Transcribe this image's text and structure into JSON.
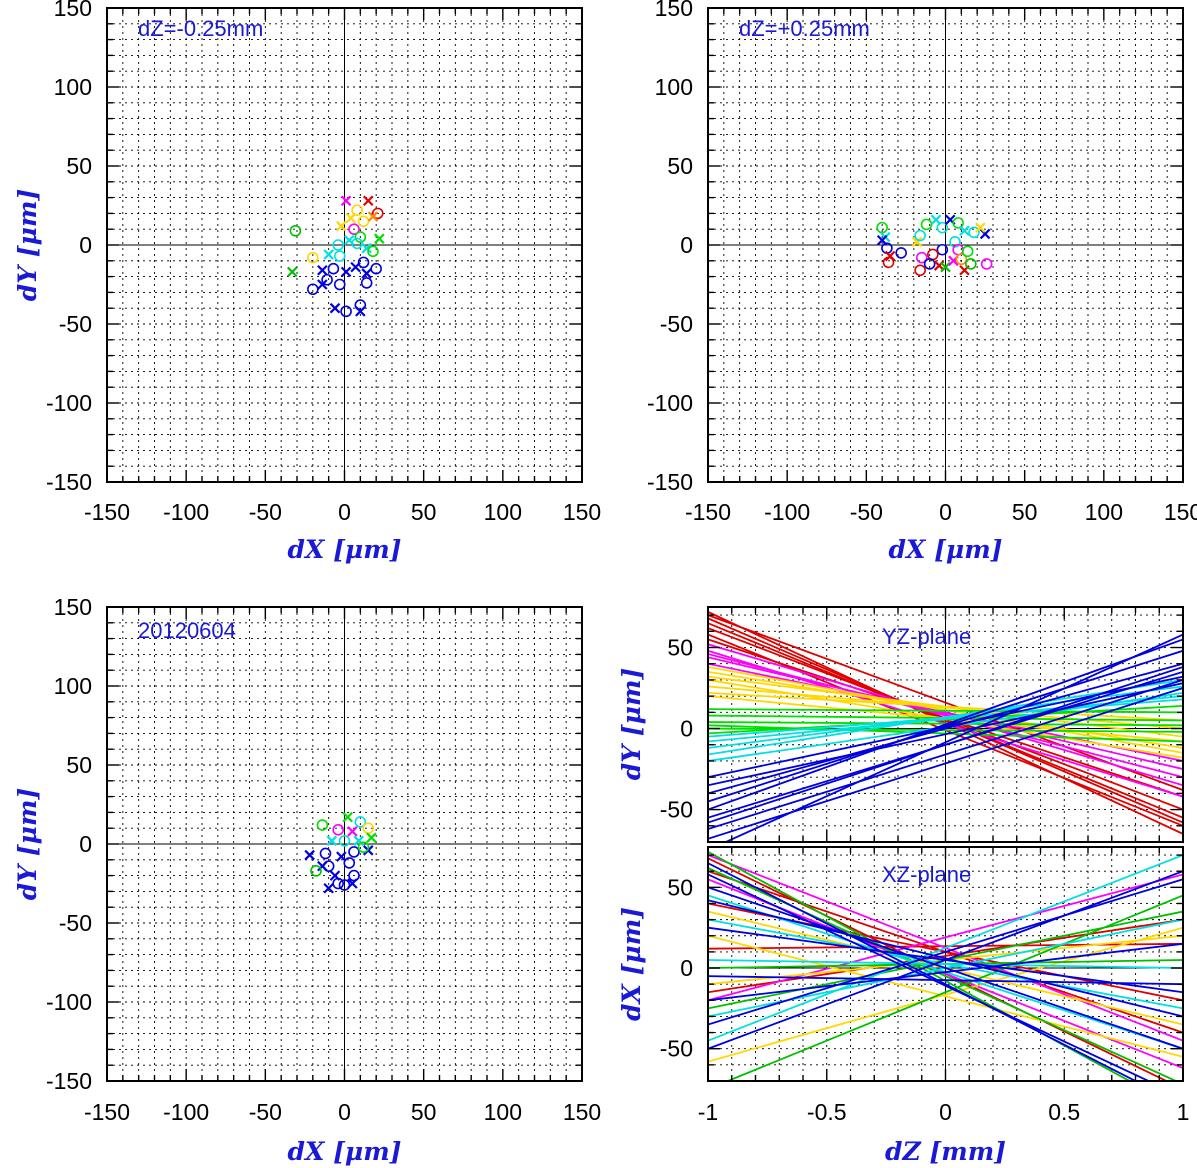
{
  "figure_date": "20120604",
  "chart_data": [
    {
      "type": "scatter",
      "annotation": "dZ=-0.25mm",
      "xlabel": "dX [μm]",
      "ylabel": "dY [μm]",
      "xlim": [
        -150,
        150
      ],
      "ylim": [
        -150,
        150
      ],
      "xticks": [
        "-150",
        "-100",
        "-50",
        "0",
        "50",
        "100",
        "150"
      ],
      "yticks": [
        "150",
        "100",
        "50",
        "0",
        "-50",
        "-100",
        "-150"
      ],
      "grid": true,
      "points": [
        {
          "x": 1,
          "y": 28,
          "c": "#ff00ff",
          "m": "x"
        },
        {
          "x": 15,
          "y": 28,
          "c": "#e00000",
          "m": "x"
        },
        {
          "x": 21,
          "y": 20,
          "c": "#e00000",
          "m": "o"
        },
        {
          "x": 8,
          "y": 22,
          "c": "#ffd800",
          "m": "o"
        },
        {
          "x": 4,
          "y": 17,
          "c": "#ffd800",
          "m": "x"
        },
        {
          "x": 12,
          "y": 15,
          "c": "#ffd800",
          "m": "o"
        },
        {
          "x": 18,
          "y": 18,
          "c": "#ff8c00",
          "m": "x"
        },
        {
          "x": 6,
          "y": 10,
          "c": "#ff00ff",
          "m": "o"
        },
        {
          "x": -2,
          "y": 12,
          "c": "#ffd800",
          "m": "x"
        },
        {
          "x": 10,
          "y": 5,
          "c": "#00e000",
          "m": "o"
        },
        {
          "x": -31,
          "y": 9,
          "c": "#00c000",
          "m": "o"
        },
        {
          "x": 22,
          "y": 4,
          "c": "#00e000",
          "m": "x"
        },
        {
          "x": 3,
          "y": 3,
          "c": "#00e0e0",
          "m": "x"
        },
        {
          "x": -4,
          "y": 0,
          "c": "#00e0e0",
          "m": "o"
        },
        {
          "x": 14,
          "y": -2,
          "c": "#00e0e0",
          "m": "x"
        },
        {
          "x": 8,
          "y": 1,
          "c": "#00e0e0",
          "m": "o"
        },
        {
          "x": -10,
          "y": -6,
          "c": "#00e0e0",
          "m": "x"
        },
        {
          "x": -3,
          "y": -7,
          "c": "#00e0e0",
          "m": "o"
        },
        {
          "x": -20,
          "y": -8,
          "c": "#ffd800",
          "m": "o"
        },
        {
          "x": 18,
          "y": -4,
          "c": "#00e000",
          "m": "o"
        },
        {
          "x": -33,
          "y": -17,
          "c": "#00c000",
          "m": "x"
        },
        {
          "x": -14,
          "y": -16,
          "c": "#0000e0",
          "m": "x"
        },
        {
          "x": -7,
          "y": -15,
          "c": "#0000e0",
          "m": "o"
        },
        {
          "x": 1,
          "y": -17,
          "c": "#0000e0",
          "m": "x"
        },
        {
          "x": 7,
          "y": -14,
          "c": "#0000e0",
          "m": "x"
        },
        {
          "x": 12,
          "y": -11,
          "c": "#0000e0",
          "m": "o"
        },
        {
          "x": 20,
          "y": -15,
          "c": "#0000e0",
          "m": "o"
        },
        {
          "x": 14,
          "y": -18,
          "c": "#0000e0",
          "m": "x"
        },
        {
          "x": -11,
          "y": -22,
          "c": "#0000e0",
          "m": "o"
        },
        {
          "x": -14,
          "y": -25,
          "c": "#0000e0",
          "m": "x"
        },
        {
          "x": -20,
          "y": -28,
          "c": "#0000e0",
          "m": "o"
        },
        {
          "x": 14,
          "y": -24,
          "c": "#0000e0",
          "m": "o"
        },
        {
          "x": -3,
          "y": -25,
          "c": "#0000e0",
          "m": "o"
        },
        {
          "x": 10,
          "y": -38,
          "c": "#0000e0",
          "m": "o"
        },
        {
          "x": 10,
          "y": -42,
          "c": "#0000e0",
          "m": "x"
        },
        {
          "x": -6,
          "y": -40,
          "c": "#0000e0",
          "m": "x"
        },
        {
          "x": 1,
          "y": -42,
          "c": "#0000e0",
          "m": "o"
        }
      ]
    },
    {
      "type": "scatter",
      "annotation": "dZ=+0.25mm",
      "xlabel": "dX [μm]",
      "ylabel": "dY [μm]",
      "xlim": [
        -150,
        150
      ],
      "ylim": [
        -150,
        150
      ],
      "xticks": [
        "-150",
        "-100",
        "-50",
        "0",
        "50",
        "100",
        "150"
      ],
      "yticks": [
        "150",
        "100",
        "50",
        "0",
        "-50",
        "-100",
        "-150"
      ],
      "grid": true,
      "points": [
        {
          "x": -40,
          "y": 11,
          "c": "#00e000",
          "m": "o"
        },
        {
          "x": -38,
          "y": 5,
          "c": "#00e0e0",
          "m": "x"
        },
        {
          "x": -40,
          "y": 3,
          "c": "#0000e0",
          "m": "x"
        },
        {
          "x": -37,
          "y": -2,
          "c": "#0000e0",
          "m": "o"
        },
        {
          "x": -35,
          "y": -7,
          "c": "#e00000",
          "m": "x"
        },
        {
          "x": -36,
          "y": -11,
          "c": "#e00000",
          "m": "o"
        },
        {
          "x": -28,
          "y": -5,
          "c": "#0000e0",
          "m": "o"
        },
        {
          "x": -18,
          "y": 2,
          "c": "#ffd800",
          "m": "x"
        },
        {
          "x": -16,
          "y": 6,
          "c": "#00e0e0",
          "m": "o"
        },
        {
          "x": -12,
          "y": 13,
          "c": "#00e000",
          "m": "o"
        },
        {
          "x": -6,
          "y": 16,
          "c": "#00e0e0",
          "m": "x"
        },
        {
          "x": -2,
          "y": 11,
          "c": "#00e0e0",
          "m": "o"
        },
        {
          "x": 3,
          "y": 16,
          "c": "#0000e0",
          "m": "x"
        },
        {
          "x": 8,
          "y": 14,
          "c": "#00e000",
          "m": "o"
        },
        {
          "x": 12,
          "y": 9,
          "c": "#00e0e0",
          "m": "x"
        },
        {
          "x": 18,
          "y": 8,
          "c": "#00e0e0",
          "m": "o"
        },
        {
          "x": 25,
          "y": 7,
          "c": "#0000e0",
          "m": "x"
        },
        {
          "x": 22,
          "y": 11,
          "c": "#ffd800",
          "m": "x"
        },
        {
          "x": 6,
          "y": 2,
          "c": "#00e0e0",
          "m": "o"
        },
        {
          "x": -2,
          "y": -3,
          "c": "#0000e0",
          "m": "o"
        },
        {
          "x": -8,
          "y": -6,
          "c": "#e00000",
          "m": "o"
        },
        {
          "x": -15,
          "y": -8,
          "c": "#ff00ff",
          "m": "o"
        },
        {
          "x": -16,
          "y": -16,
          "c": "#e00000",
          "m": "o"
        },
        {
          "x": -10,
          "y": -12,
          "c": "#0000e0",
          "m": "o"
        },
        {
          "x": -4,
          "y": -13,
          "c": "#e00000",
          "m": "x"
        },
        {
          "x": 0,
          "y": -14,
          "c": "#00c000",
          "m": "x"
        },
        {
          "x": 5,
          "y": -10,
          "c": "#ff00ff",
          "m": "x"
        },
        {
          "x": 8,
          "y": -3,
          "c": "#ff00ff",
          "m": "o"
        },
        {
          "x": 10,
          "y": -9,
          "c": "#ff8c00",
          "m": "o"
        },
        {
          "x": 12,
          "y": -16,
          "c": "#e00000",
          "m": "x"
        },
        {
          "x": 16,
          "y": -12,
          "c": "#00c000",
          "m": "o"
        },
        {
          "x": 26,
          "y": -12,
          "c": "#ff00ff",
          "m": "o"
        },
        {
          "x": 14,
          "y": -4,
          "c": "#00e000",
          "m": "o"
        }
      ]
    },
    {
      "type": "scatter",
      "annotation": "20120604",
      "xlabel": "dX [μm]",
      "ylabel": "dY [μm]",
      "xlim": [
        -150,
        150
      ],
      "ylim": [
        -150,
        150
      ],
      "xticks": [
        "-150",
        "-100",
        "-50",
        "0",
        "50",
        "100",
        "150"
      ],
      "yticks": [
        "150",
        "100",
        "50",
        "0",
        "-50",
        "-100",
        "-150"
      ],
      "grid": true,
      "points": [
        {
          "x": 2,
          "y": 17,
          "c": "#00e000",
          "m": "x"
        },
        {
          "x": -14,
          "y": 12,
          "c": "#00e000",
          "m": "o"
        },
        {
          "x": 10,
          "y": 14,
          "c": "#00e0e0",
          "m": "o"
        },
        {
          "x": 15,
          "y": 10,
          "c": "#ffd800",
          "m": "o"
        },
        {
          "x": 5,
          "y": 8,
          "c": "#ff00ff",
          "m": "x"
        },
        {
          "x": -4,
          "y": 9,
          "c": "#ff00ff",
          "m": "o"
        },
        {
          "x": 17,
          "y": 4,
          "c": "#00e000",
          "m": "x"
        },
        {
          "x": -8,
          "y": 2,
          "c": "#00e0e0",
          "m": "x"
        },
        {
          "x": 0,
          "y": 2,
          "c": "#00e0e0",
          "m": "o"
        },
        {
          "x": 9,
          "y": 2,
          "c": "#00e0e0",
          "m": "x"
        },
        {
          "x": -22,
          "y": -7,
          "c": "#0000e0",
          "m": "x"
        },
        {
          "x": -12,
          "y": -6,
          "c": "#0000e0",
          "m": "o"
        },
        {
          "x": -2,
          "y": -8,
          "c": "#0000e0",
          "m": "x"
        },
        {
          "x": 6,
          "y": -5,
          "c": "#0000e0",
          "m": "o"
        },
        {
          "x": 15,
          "y": -4,
          "c": "#0000e0",
          "m": "x"
        },
        {
          "x": -14,
          "y": -14,
          "c": "#0000e0",
          "m": "x"
        },
        {
          "x": -18,
          "y": -17,
          "c": "#00c000",
          "m": "o"
        },
        {
          "x": -10,
          "y": -14,
          "c": "#0000e0",
          "m": "o"
        },
        {
          "x": -6,
          "y": -20,
          "c": "#0000e0",
          "m": "x"
        },
        {
          "x": -4,
          "y": -25,
          "c": "#0000e0",
          "m": "o"
        },
        {
          "x": 0,
          "y": -26,
          "c": "#0000e0",
          "m": "o"
        },
        {
          "x": 5,
          "y": -25,
          "c": "#0000e0",
          "m": "x"
        },
        {
          "x": 6,
          "y": -20,
          "c": "#0000e0",
          "m": "o"
        },
        {
          "x": -10,
          "y": -28,
          "c": "#0000e0",
          "m": "x"
        },
        {
          "x": 3,
          "y": -12,
          "c": "#0000e0",
          "m": "o"
        },
        {
          "x": 12,
          "y": -2,
          "c": "#00e000",
          "m": "o"
        }
      ]
    },
    {
      "type": "line",
      "annotation": "YZ-plane",
      "xlabel": "dZ [mm]",
      "ylabel": "dY [μm]",
      "xlim": [
        -1,
        1
      ],
      "ylim": [
        -70,
        75
      ],
      "xticks": [
        "-1",
        "-0.5",
        "0",
        "0.5",
        "1"
      ],
      "yticks": [
        "50",
        "0",
        "-50"
      ],
      "grid": true,
      "lines": [
        {
          "y1": 72,
          "y2": -65,
          "c": "#e00000"
        },
        {
          "y1": 68,
          "y2": -58,
          "c": "#e00000"
        },
        {
          "y1": 65,
          "y2": -55,
          "c": "#e00000"
        },
        {
          "y1": 62,
          "y2": -50,
          "c": "#e00000"
        },
        {
          "y1": 58,
          "y2": -60,
          "c": "#e00000"
        },
        {
          "y1": 55,
          "y2": -42,
          "c": "#e00000"
        },
        {
          "y1": 70,
          "y2": -38,
          "c": "#e00000"
        },
        {
          "y1": 52,
          "y2": -35,
          "c": "#ff00ff"
        },
        {
          "y1": 48,
          "y2": -42,
          "c": "#ff00ff"
        },
        {
          "y1": 46,
          "y2": -30,
          "c": "#ff00ff"
        },
        {
          "y1": 44,
          "y2": -25,
          "c": "#ff00ff"
        },
        {
          "y1": 40,
          "y2": -20,
          "c": "#ff00ff"
        },
        {
          "y1": 38,
          "y2": -15,
          "c": "#ffd800"
        },
        {
          "y1": 35,
          "y2": -12,
          "c": "#ffd800"
        },
        {
          "y1": 32,
          "y2": -5,
          "c": "#ffd800"
        },
        {
          "y1": 30,
          "y2": -18,
          "c": "#ffd800"
        },
        {
          "y1": 26,
          "y2": 0,
          "c": "#ffd800"
        },
        {
          "y1": 22,
          "y2": 5,
          "c": "#ffd800"
        },
        {
          "y1": 20,
          "y2": -8,
          "c": "#ffd800"
        },
        {
          "y1": 12,
          "y2": 10,
          "c": "#00e000"
        },
        {
          "y1": 8,
          "y2": 5,
          "c": "#00e000"
        },
        {
          "y1": 4,
          "y2": 2,
          "c": "#00e000"
        },
        {
          "y1": 0,
          "y2": -2,
          "c": "#00e000"
        },
        {
          "y1": -3,
          "y2": 14,
          "c": "#00e000"
        },
        {
          "y1": 2,
          "y2": -8,
          "c": "#00e000"
        },
        {
          "y1": -8,
          "y2": 20,
          "c": "#00e0e0"
        },
        {
          "y1": -12,
          "y2": 26,
          "c": "#00e0e0"
        },
        {
          "y1": -16,
          "y2": 30,
          "c": "#00e0e0"
        },
        {
          "y1": -20,
          "y2": 22,
          "c": "#00e0e0"
        },
        {
          "y1": -5,
          "y2": 18,
          "c": "#00e0e0"
        },
        {
          "y1": -40,
          "y2": 40,
          "c": "#0000e0"
        },
        {
          "y1": -45,
          "y2": 48,
          "c": "#0000e0"
        },
        {
          "y1": -50,
          "y2": 55,
          "c": "#0000e0"
        },
        {
          "y1": -55,
          "y2": 35,
          "c": "#0000e0"
        },
        {
          "y1": -58,
          "y2": 38,
          "c": "#0000e0"
        },
        {
          "y1": -62,
          "y2": 30,
          "c": "#0000e0"
        },
        {
          "y1": -35,
          "y2": 28,
          "c": "#0000e0"
        },
        {
          "y1": -30,
          "y2": 32,
          "c": "#0000e0"
        },
        {
          "y1": -75,
          "y2": 58,
          "c": "#0000e0"
        },
        {
          "y1": -68,
          "y2": 25,
          "c": "#0000e0"
        }
      ]
    },
    {
      "type": "line",
      "annotation": "XZ-plane",
      "xlabel": "dZ [mm]",
      "ylabel": "dX [μm]",
      "xlim": [
        -1,
        1
      ],
      "ylim": [
        -70,
        75
      ],
      "xticks": [
        "-1",
        "-0.5",
        "0",
        "0.5",
        "1"
      ],
      "yticks": [
        "50",
        "0",
        "-50"
      ],
      "grid": true,
      "lines": [
        {
          "y1": 60,
          "y2": -40,
          "c": "#e00000"
        },
        {
          "y1": 40,
          "y2": -20,
          "c": "#e00000"
        },
        {
          "y1": 12,
          "y2": 15,
          "c": "#e00000"
        },
        {
          "y1": -15,
          "y2": 30,
          "c": "#e00000"
        },
        {
          "y1": 68,
          "y2": -75,
          "c": "#e00000"
        },
        {
          "y1": 70,
          "y2": -45,
          "c": "#ff00ff"
        },
        {
          "y1": 55,
          "y2": -62,
          "c": "#ff00ff"
        },
        {
          "y1": -20,
          "y2": 58,
          "c": "#ff00ff"
        },
        {
          "y1": 35,
          "y2": -35,
          "c": "#ffd800"
        },
        {
          "y1": -58,
          "y2": 25,
          "c": "#ffd800"
        },
        {
          "y1": 20,
          "y2": -55,
          "c": "#ffd800"
        },
        {
          "y1": -10,
          "y2": 20,
          "c": "#ffd800"
        },
        {
          "y1": 72,
          "y2": -88,
          "c": "#00c000"
        },
        {
          "y1": -75,
          "y2": 45,
          "c": "#00c000"
        },
        {
          "y1": 62,
          "y2": -72,
          "c": "#00c000"
        },
        {
          "y1": 0,
          "y2": 5,
          "c": "#00c000"
        },
        {
          "y1": -25,
          "y2": 35,
          "c": "#00c000"
        },
        {
          "y1": -45,
          "y2": 70,
          "c": "#00e0e0"
        },
        {
          "y1": 45,
          "y2": -50,
          "c": "#00e0e0"
        },
        {
          "y1": -30,
          "y2": 30,
          "c": "#00e0e0"
        },
        {
          "y1": 30,
          "y2": -25,
          "c": "#00e0e0"
        },
        {
          "y1": 5,
          "y2": 0,
          "c": "#00e0e0"
        },
        {
          "y1": 65,
          "y2": -85,
          "c": "#0000e0"
        },
        {
          "y1": 58,
          "y2": -80,
          "c": "#0000e0"
        },
        {
          "y1": 50,
          "y2": -50,
          "c": "#0000e0"
        },
        {
          "y1": 42,
          "y2": -30,
          "c": "#0000e0"
        },
        {
          "y1": 25,
          "y2": -15,
          "c": "#0000e0"
        },
        {
          "y1": -35,
          "y2": 55,
          "c": "#0000e0"
        },
        {
          "y1": -50,
          "y2": 60,
          "c": "#0000e0"
        },
        {
          "y1": -5,
          "y2": -10,
          "c": "#0000e0"
        },
        {
          "y1": -20,
          "y2": 15,
          "c": "#0000e0"
        }
      ]
    }
  ]
}
